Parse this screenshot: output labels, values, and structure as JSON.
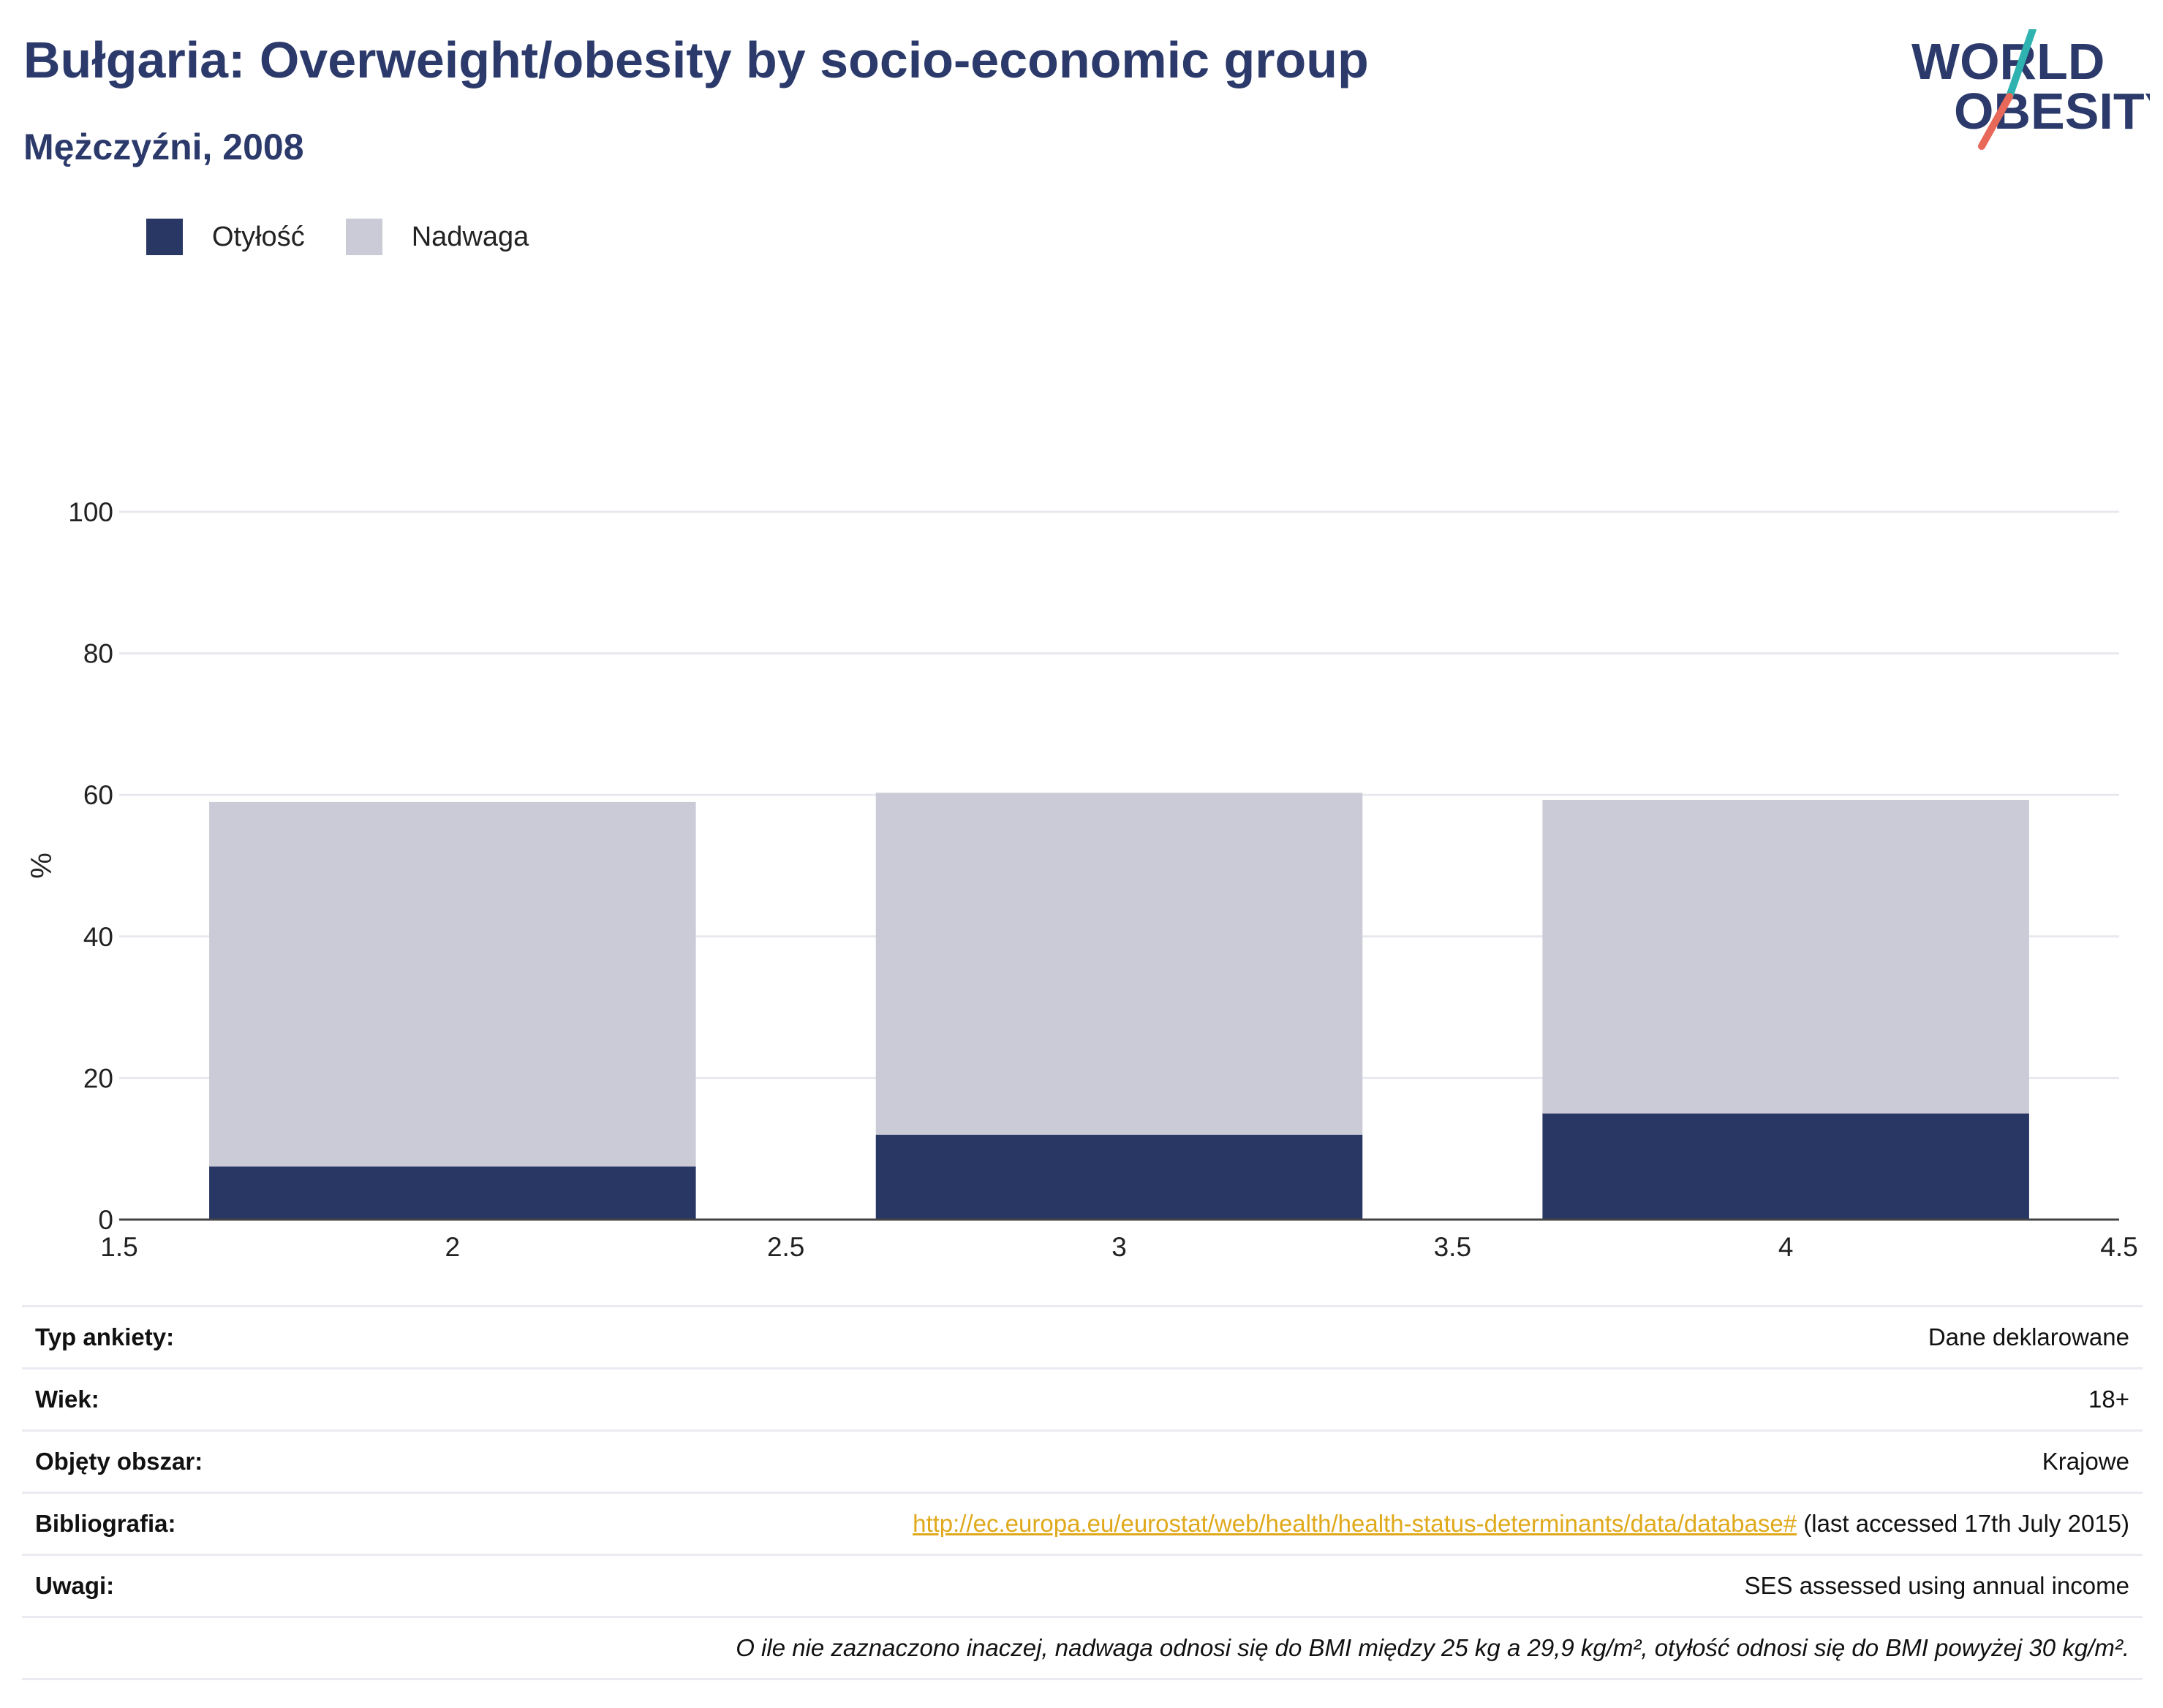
{
  "header": {
    "title": "Bułgaria: Overweight/obesity by socio-economic group",
    "subtitle": "Mężczyźni, 2008"
  },
  "logo": {
    "line1": "WORLD",
    "line2": "OBESITY",
    "color_text": "#2b3a6b",
    "color_slash_top": "#2fb3b0",
    "color_slash_bottom": "#e8685a"
  },
  "legend": [
    {
      "label": "Otyłość",
      "color": "#293764"
    },
    {
      "label": "Nadwaga",
      "color": "#cacbd6"
    }
  ],
  "chart_data": {
    "type": "bar",
    "stacked": true,
    "x": [
      2,
      3,
      4
    ],
    "xlim": [
      1.5,
      4.5
    ],
    "x_ticks": [
      "1.5",
      "2",
      "2.5",
      "3",
      "3.5",
      "4",
      "4.5"
    ],
    "ylim": [
      0,
      100
    ],
    "y_ticks": [
      "0",
      "20",
      "40",
      "60",
      "80",
      "100"
    ],
    "ylabel": "%",
    "grid": true,
    "legend_position": "top-left",
    "series": [
      {
        "name": "Otyłość",
        "color": "#293764",
        "values": [
          7.5,
          12,
          15
        ]
      },
      {
        "name": "Nadwaga",
        "color": "#cacbd6",
        "values": [
          51.5,
          48.3,
          44.3
        ]
      }
    ]
  },
  "info": {
    "survey_type": {
      "label": "Typ ankiety:",
      "value": "Dane deklarowane"
    },
    "age": {
      "label": "Wiek:",
      "value": "18+"
    },
    "coverage": {
      "label": "Objęty obszar:",
      "value": "Krajowe"
    },
    "bibliography": {
      "label": "Bibliografia:",
      "link": "http://ec.europa.eu/eurostat/web/health/health-status-determinants/data/database#",
      "suffix": " (last accessed 17th July 2015)"
    },
    "notes": {
      "label": "Uwagi:",
      "value": "SES assessed using annual income"
    },
    "footnote": "O ile nie zaznaczono inaczej, nadwaga odnosi się do BMI między 25 kg a 29,9 kg/m², otyłość odnosi się do BMI powyżej 30 kg/m²."
  }
}
